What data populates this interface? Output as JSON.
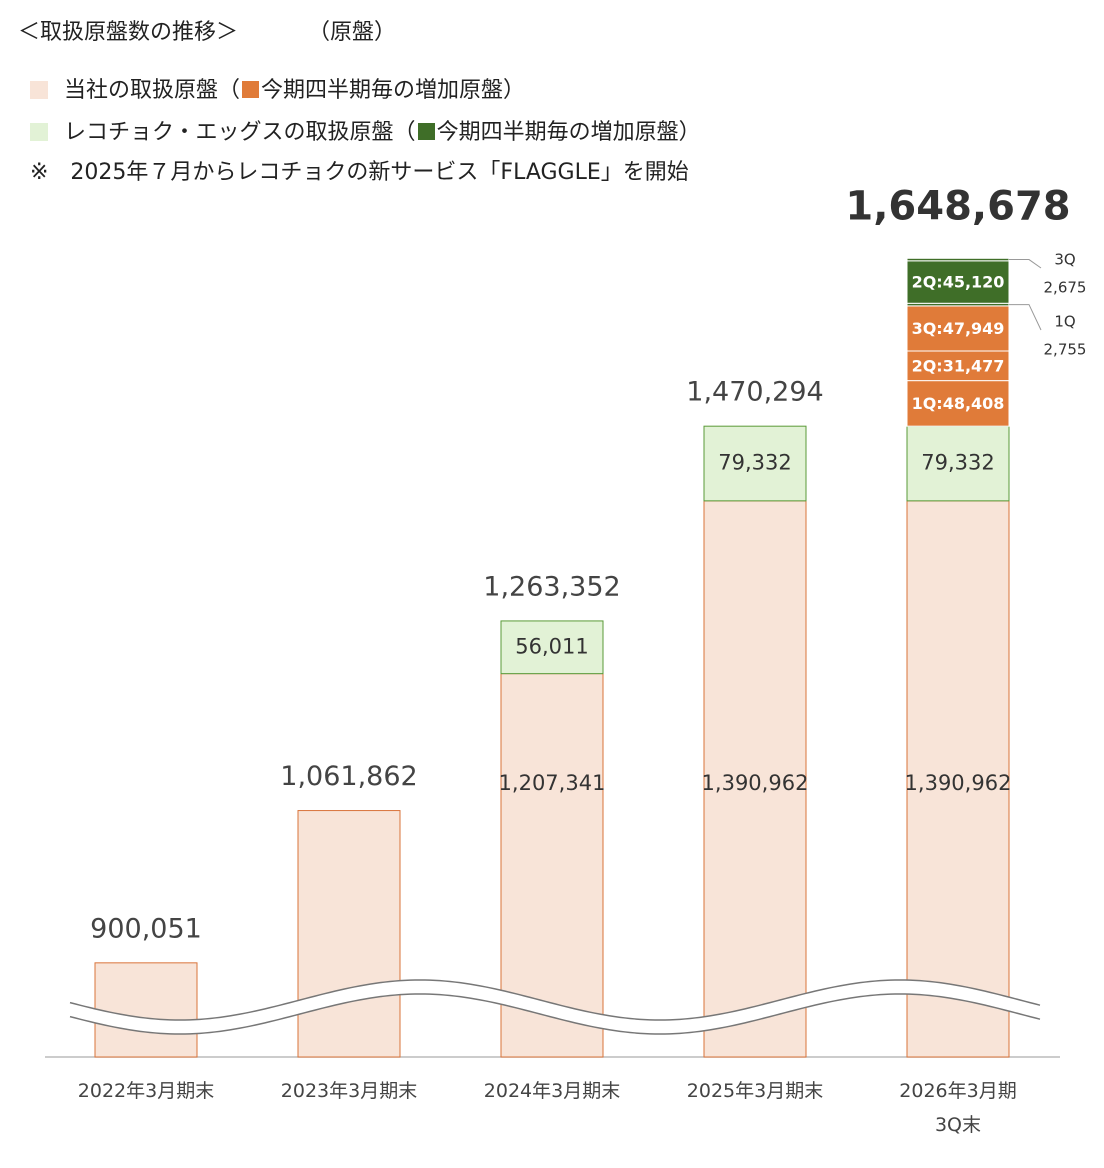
{
  "chart_data": {
    "type": "stacked_bar",
    "title": "＜取扱原盤数の推移＞",
    "unit": "（原盤）",
    "note": "※　2025年７月からレコチョクの新サービス「FLAGGLE」を開始",
    "legend": [
      {
        "text_parts": [
          "当社の取扱原盤（",
          "今期四半期毎の増加原盤）"
        ],
        "color": "#f8e4d8",
        "sub_color": "#e07b39"
      },
      {
        "text_parts": [
          "レコチョク・エッグスの取扱原盤（",
          "今期四半期毎の増加原盤）"
        ],
        "color": "#e2f2d6",
        "sub_color": "#3f6e28"
      }
    ],
    "categories": [
      "2022年3月期末",
      "2023年3月期末",
      "2024年3月期末",
      "2025年3月期末",
      "2026年3月期\n3Q末"
    ],
    "series": [
      {
        "name": "当社の取扱原盤",
        "color": "#f8e4d8",
        "stroke": "#d9733a",
        "values": [
          900051,
          1061862,
          1207341,
          1390962,
          1390962
        ],
        "value_labels": [
          null,
          null,
          "1,207,341",
          "1,390,962",
          "1,390,962"
        ]
      },
      {
        "name": "レコチョク・エッグスの取扱原盤",
        "color": "#e2f2d6",
        "stroke": "#5a9a38",
        "values": [
          null,
          null,
          56011,
          79332,
          79332
        ],
        "value_labels": [
          null,
          null,
          "56,011",
          "79,332",
          "79,332"
        ]
      }
    ],
    "quarterly": [
      {
        "color": "#e07b39",
        "segments": [
          {
            "value": 48408,
            "value_label": "1Q:48,408"
          },
          {
            "value": 31477,
            "value_label": "2Q:31,477"
          },
          {
            "value": 47949,
            "value_label": "3Q:47,949"
          }
        ]
      },
      {
        "color": "#3f6e28",
        "segments": [
          {
            "name": "1Q",
            "value": 2755,
            "value_label": "2,755"
          },
          {
            "value": 45120,
            "value_label": "2Q:45,120"
          },
          {
            "name": "3Q",
            "value": 2675,
            "value_label": "2,675"
          }
        ]
      }
    ],
    "totals": {
      "values": [
        900051,
        1061862,
        1263352,
        1470294,
        1648678
      ],
      "value_labels": [
        "900,051",
        "1,061,862",
        "1,263,352",
        "1,470,294",
        "1,648,678"
      ]
    },
    "ylim": [
      800000,
      1700000
    ],
    "axis_break": true
  }
}
